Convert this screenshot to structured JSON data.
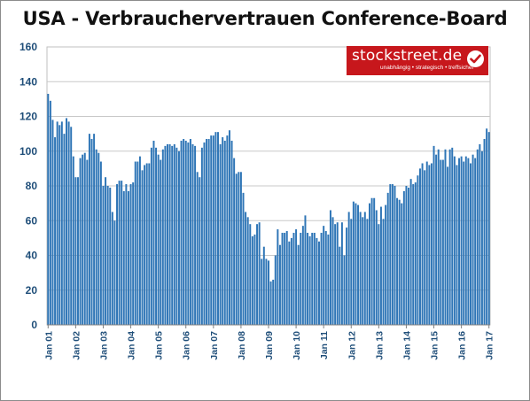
{
  "chart_data": {
    "type": "bar",
    "title": "USA - Verbrauchervertrauen Conference-Board",
    "y_ticks": [
      "0",
      "20",
      "40",
      "60",
      "80",
      "100",
      "120",
      "140",
      "160"
    ],
    "ylim": [
      0,
      160
    ],
    "grid": true,
    "x_tick_labels": [
      "Jan 01",
      "Jan 02",
      "Jan 03",
      "Jan 04",
      "Jan 05",
      "Jan 06",
      "Jan 07",
      "Jan 08",
      "Jan 09",
      "Jan 10",
      "Jan 11",
      "Jan 12",
      "Jan 13",
      "Jan 14",
      "Jan 15",
      "Jan 16",
      "Jan 17"
    ],
    "series_color": "#2e75b6",
    "values": [
      133,
      129,
      118,
      108,
      117,
      115,
      117,
      110,
      119,
      117,
      114,
      97,
      85,
      85,
      96,
      98,
      99,
      95,
      110,
      107,
      110,
      101,
      99,
      94,
      80,
      85,
      80,
      79,
      65,
      60,
      81,
      83,
      83,
      77,
      81,
      77,
      81,
      82,
      94,
      94,
      97,
      89,
      92,
      93,
      93,
      102,
      106,
      102,
      98,
      95,
      101,
      103,
      104,
      104,
      103,
      104,
      102,
      100,
      106,
      107,
      106,
      105,
      107,
      104,
      103,
      88,
      85,
      102,
      105,
      107,
      107,
      109,
      109,
      111,
      111,
      104,
      108,
      106,
      109,
      112,
      106,
      96,
      87,
      88,
      88,
      76,
      65,
      62,
      58,
      51,
      52,
      58,
      59,
      38,
      45,
      38,
      37,
      25,
      26,
      40,
      55,
      46,
      53,
      53,
      54,
      48,
      50,
      53,
      55,
      46,
      53,
      57,
      63,
      53,
      51,
      53,
      53,
      50,
      48,
      53,
      57,
      54,
      52,
      66,
      62,
      58,
      59,
      45,
      59,
      40,
      56,
      65,
      61,
      71,
      70,
      69,
      65,
      62,
      65,
      61,
      70,
      73,
      73,
      66,
      58,
      68,
      61,
      69,
      76,
      81,
      81,
      80,
      73,
      72,
      70,
      77,
      80,
      79,
      84,
      81,
      82,
      86,
      90,
      93,
      89,
      94,
      92,
      93,
      103,
      98,
      101,
      95,
      95,
      101,
      91,
      101,
      102,
      97,
      92,
      96,
      97,
      94,
      97,
      96,
      93,
      98,
      96,
      101,
      104,
      100,
      107,
      113,
      111
    ]
  },
  "logo": {
    "name": "stockstreet.de",
    "tagline": "unabhängig • strategisch • treffsicher"
  }
}
